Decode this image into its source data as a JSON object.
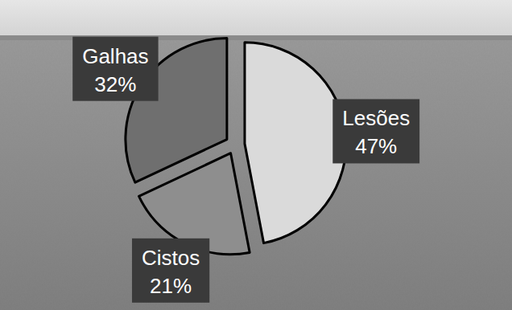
{
  "chart_data": {
    "type": "pie",
    "categories": [
      "Lesões",
      "Cistos",
      "Galhas"
    ],
    "values": [
      47,
      21,
      32
    ],
    "value_labels": [
      "47%",
      "21%",
      "32%"
    ],
    "colors": [
      "#dadada",
      "#8e8e8e",
      "#6f6f6f"
    ],
    "data_labels": true
  }
}
